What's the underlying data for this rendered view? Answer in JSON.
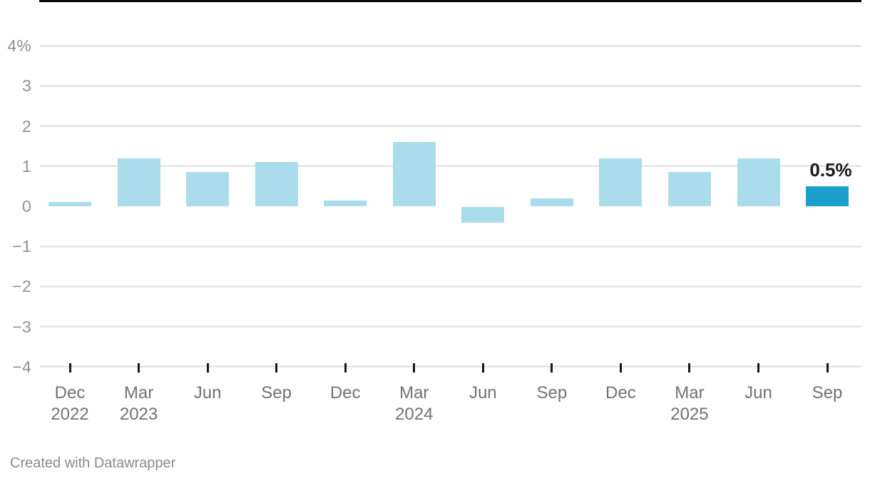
{
  "chart_data": {
    "type": "bar",
    "title": "",
    "unit": "%",
    "categories": [
      {
        "month": "Dec",
        "year": "2022"
      },
      {
        "month": "Mar",
        "year": "2023"
      },
      {
        "month": "Jun",
        "year": ""
      },
      {
        "month": "Sep",
        "year": ""
      },
      {
        "month": "Dec",
        "year": ""
      },
      {
        "month": "Mar",
        "year": "2024"
      },
      {
        "month": "Jun",
        "year": ""
      },
      {
        "month": "Sep",
        "year": ""
      },
      {
        "month": "Dec",
        "year": ""
      },
      {
        "month": "Mar",
        "year": "2025"
      },
      {
        "month": "Jun",
        "year": ""
      },
      {
        "month": "Sep",
        "year": ""
      }
    ],
    "values": [
      0.1,
      1.2,
      0.85,
      1.1,
      0.15,
      1.6,
      -0.4,
      0.2,
      1.2,
      0.85,
      1.2,
      0.5
    ],
    "ylim": [
      -4,
      4
    ],
    "grid": true,
    "yticks": [
      {
        "value": 4,
        "label": "4%"
      },
      {
        "value": 3,
        "label": "3"
      },
      {
        "value": 2,
        "label": "2"
      },
      {
        "value": 1,
        "label": "1"
      },
      {
        "value": 0,
        "label": "0"
      },
      {
        "value": -1,
        "label": "−1"
      },
      {
        "value": -2,
        "label": "−2"
      },
      {
        "value": -3,
        "label": "−3"
      },
      {
        "value": -4,
        "label": "−4"
      }
    ],
    "highlight": {
      "index": 11,
      "label": "0.5%"
    },
    "colors": {
      "bar": "#abdcec",
      "highlight_bar": "#1ba0cd",
      "gridline": "#e8e8e8",
      "zero_line": "#0a0a0a",
      "tick": "#161616",
      "y_label": "#919191",
      "x_label": "#727272"
    }
  },
  "footer": {
    "credit": "Created with Datawrapper"
  }
}
